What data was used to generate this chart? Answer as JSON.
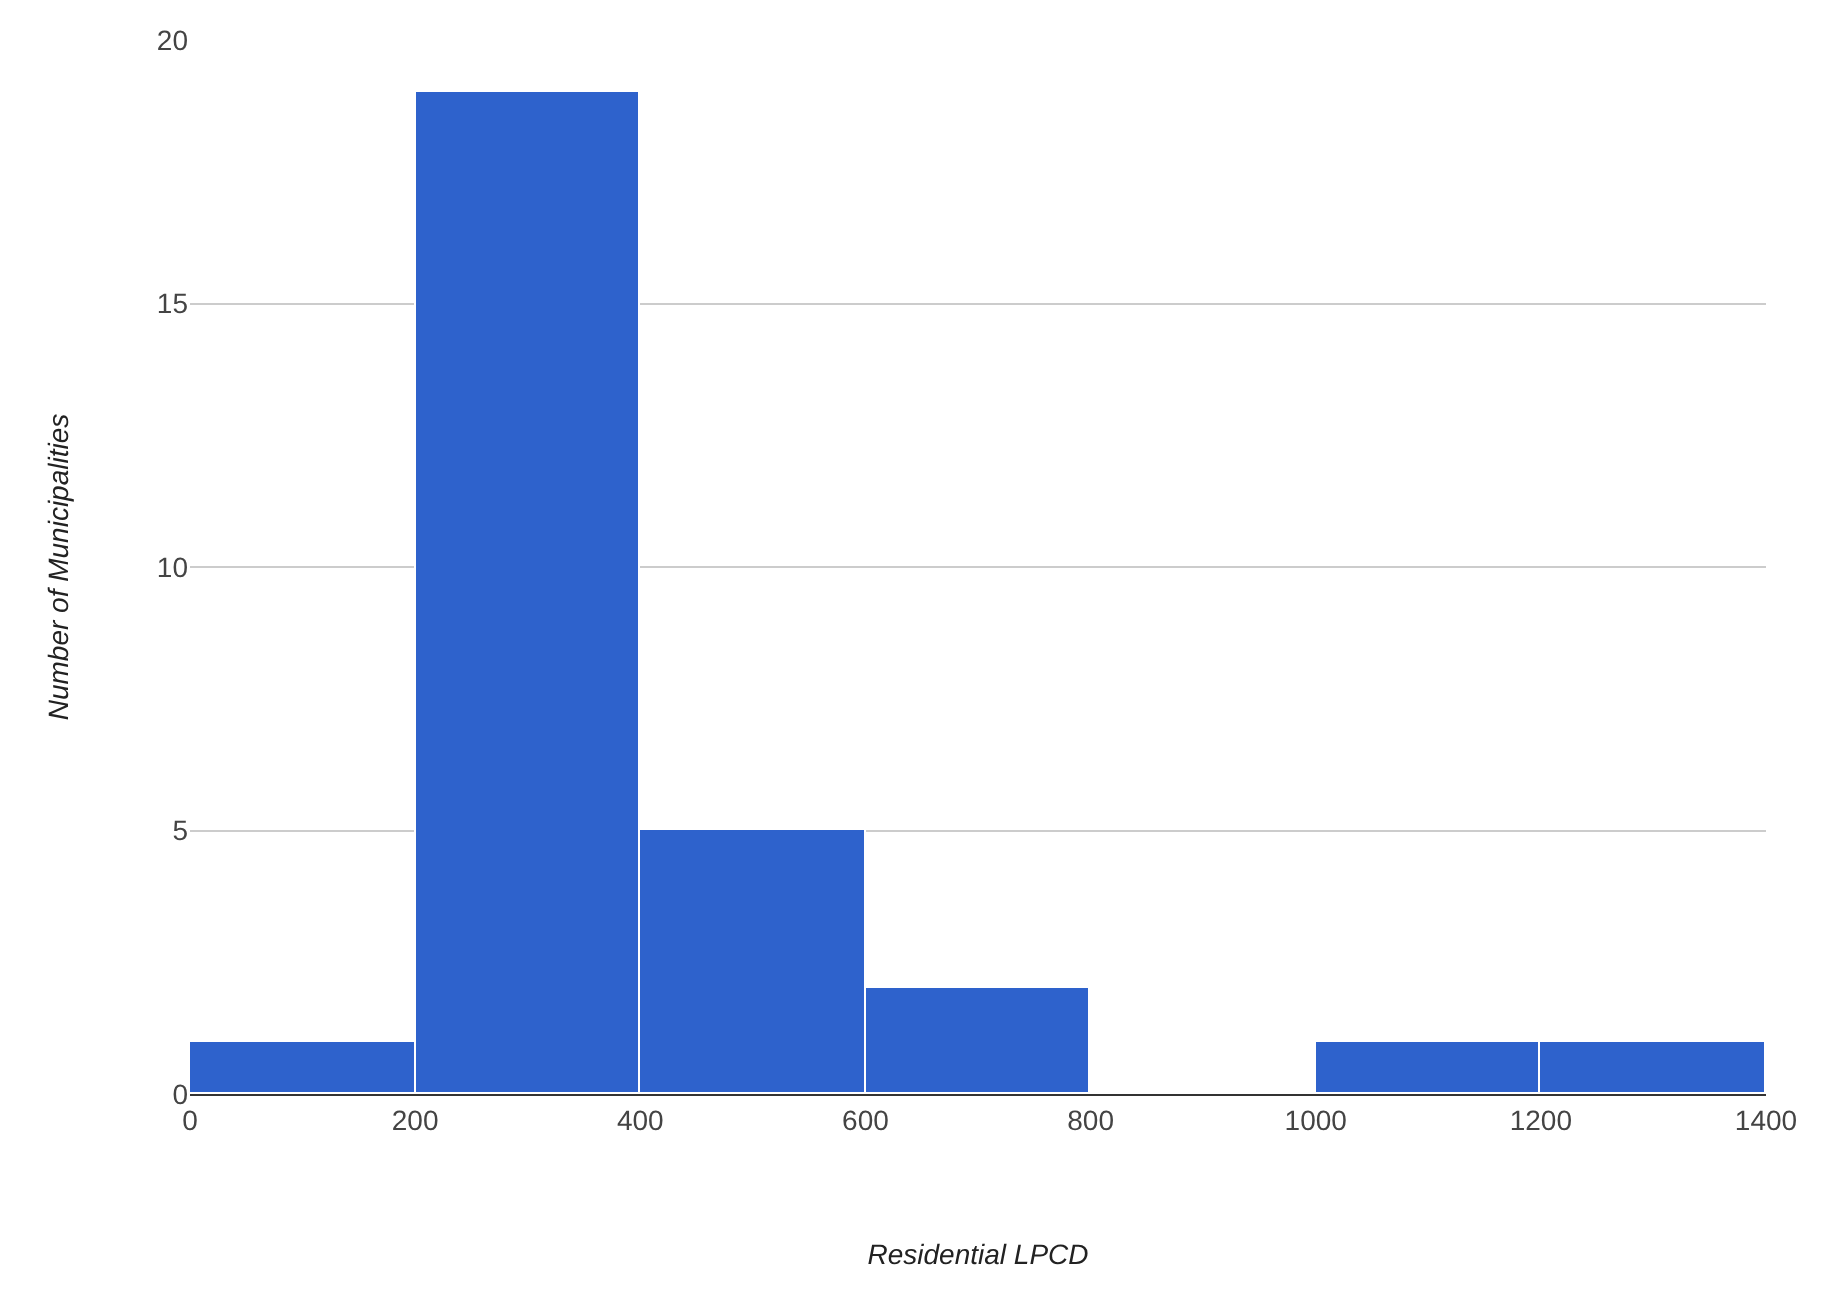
{
  "chart_data": {
    "type": "histogram",
    "xlabel": "Residential LPCD",
    "ylabel": "Number of Municipalities",
    "bins": [
      0,
      200,
      400,
      600,
      800,
      1000,
      1200,
      1400
    ],
    "values": [
      1,
      19,
      5,
      2,
      0,
      1,
      1
    ],
    "color": "#2e62cc",
    "xlim": [
      0,
      1400
    ],
    "xticks": [
      0,
      200,
      400,
      600,
      800,
      1000,
      1200,
      1400
    ],
    "ylim": [
      0,
      20
    ],
    "yticks": [
      0,
      5,
      10,
      15,
      20
    ],
    "grid": "y"
  }
}
